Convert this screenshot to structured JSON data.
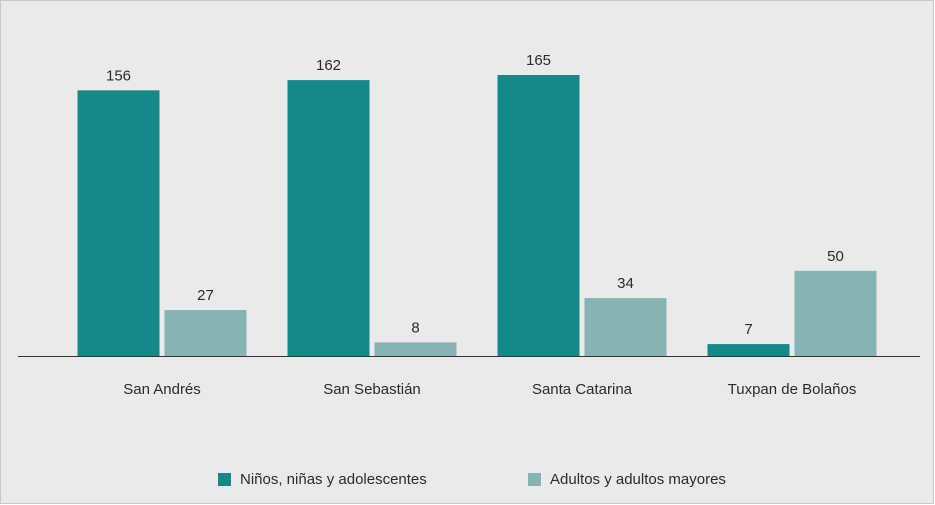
{
  "chart_data": {
    "type": "bar",
    "categories": [
      "San Andrés",
      "San Sebastián",
      "Santa Catarina",
      "Tuxpan de Bolaños"
    ],
    "series": [
      {
        "name": "Niños, niñas y adolescentes",
        "color": "#15888a",
        "values": [
          156,
          162,
          165,
          7
        ]
      },
      {
        "name": "Adultos y adultos mayores",
        "color": "#88b3b5",
        "values": [
          27,
          8,
          34,
          50
        ]
      }
    ],
    "legend": "bottom"
  }
}
